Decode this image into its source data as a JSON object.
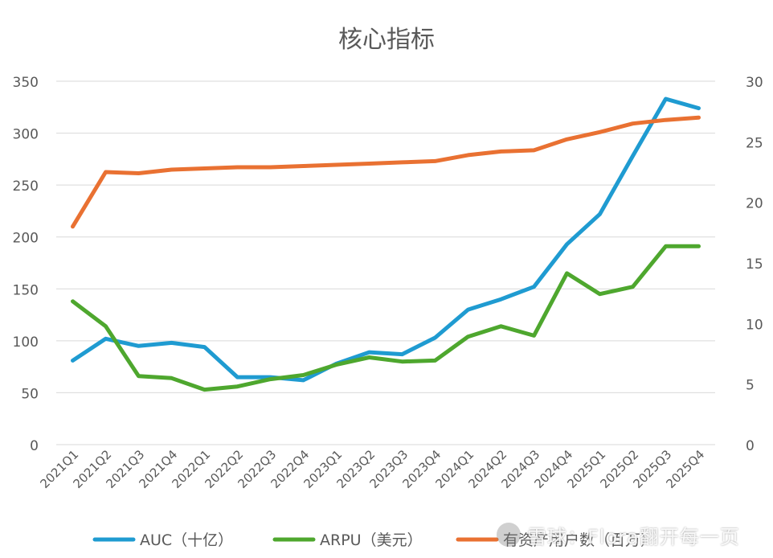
{
  "chart_data": {
    "type": "line",
    "title": "核心指标",
    "categories": [
      "2021Q1",
      "2021Q2",
      "2021Q3",
      "2021Q4",
      "2022Q1",
      "2022Q2",
      "2022Q3",
      "2022Q4",
      "2023Q1",
      "2023Q2",
      "2023Q3",
      "2023Q4",
      "2024Q1",
      "2024Q2",
      "2024Q3",
      "2024Q4",
      "2025Q1",
      "2025Q2",
      "2025Q3",
      "2025Q4"
    ],
    "y_left": {
      "ticks": [
        0,
        50,
        100,
        150,
        200,
        250,
        300,
        350
      ],
      "ylim": [
        0,
        350
      ]
    },
    "y_right": {
      "ticks": [
        0,
        5,
        10,
        15,
        20,
        25,
        30
      ],
      "ylim": [
        0,
        30
      ]
    },
    "series": [
      {
        "name": "AUC（十亿）",
        "axis": "left",
        "color": "#1f9bd1",
        "values": [
          81,
          102,
          95,
          98,
          94,
          65,
          65,
          62,
          78,
          89,
          87,
          103,
          130,
          140,
          152,
          193,
          222,
          278,
          333,
          324
        ]
      },
      {
        "name": "ARPU（美元）",
        "axis": "left",
        "color": "#4ea72e",
        "values": [
          138,
          114,
          66,
          64,
          53,
          56,
          63,
          67,
          77,
          84,
          80,
          81,
          104,
          114,
          105,
          165,
          145,
          152,
          191,
          191
        ]
      },
      {
        "name": "有资产用户数（百万）",
        "axis": "right",
        "color": "#e97132",
        "values": [
          18.0,
          22.5,
          22.4,
          22.7,
          22.8,
          22.9,
          22.9,
          23.0,
          23.1,
          23.2,
          23.3,
          23.4,
          23.9,
          24.2,
          24.3,
          25.2,
          25.8,
          26.5,
          26.8,
          27.0
        ]
      }
    ],
    "grid": true,
    "legend": "bottom"
  },
  "watermark": {
    "text": "雪球：Flora翻开每一页"
  }
}
